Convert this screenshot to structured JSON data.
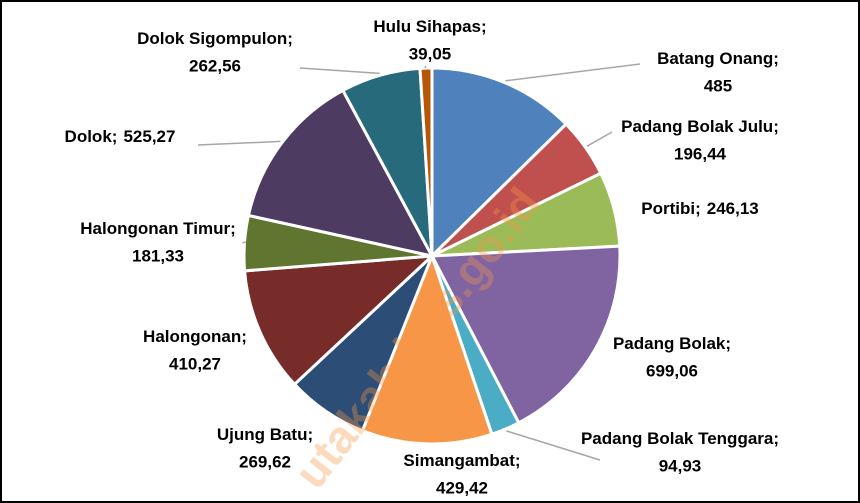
{
  "chart_data": {
    "type": "pie",
    "categories": [
      "Batang Onang",
      "Padang Bolak Julu",
      "Portibi",
      "Padang Bolak",
      "Padang Bolak Tenggara",
      "Simangambat",
      "Ujung Batu",
      "Halongonan",
      "Halongonan Timur",
      "Dolok",
      "Dolok Sigompulon",
      "Hulu Sihapas"
    ],
    "values": [
      485,
      196.44,
      246.13,
      699.06,
      94.93,
      429.42,
      269.62,
      410.27,
      181.33,
      525.27,
      262.56,
      39.05
    ],
    "value_labels": [
      "485",
      "196,44",
      "246,13",
      "699,06",
      "94,93",
      "429,42",
      "269,62",
      "410,27",
      "181,33",
      "525,27",
      "262,56",
      "39,05"
    ],
    "label_separator": ";",
    "colors": [
      "#4f81bd",
      "#c0504d",
      "#9bbb59",
      "#8064a2",
      "#4bacc6",
      "#f79646",
      "#2c4d75",
      "#772c2a",
      "#5f7530",
      "#4d3b62",
      "#276a7c",
      "#b65708"
    ],
    "watermark": "utakab.bps.go.id"
  }
}
